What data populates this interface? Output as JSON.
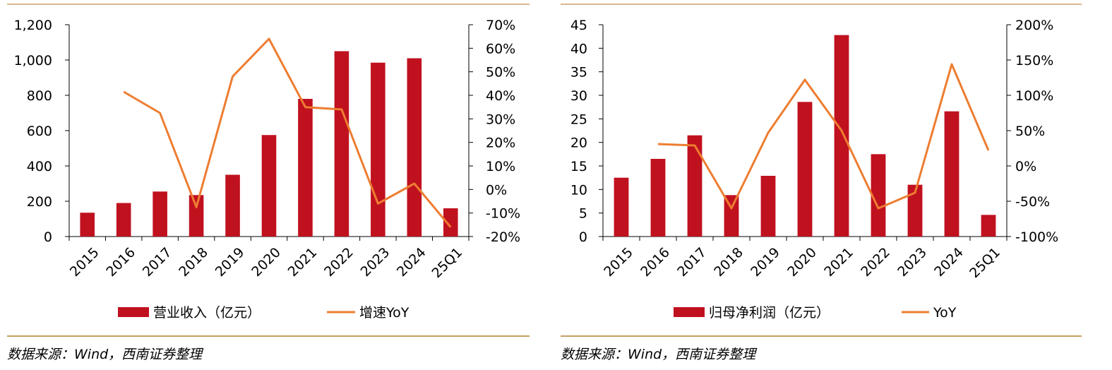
{
  "colors": {
    "bar": "#C0111F",
    "line": "#ED7D31",
    "rule": "#C9A063",
    "axis": "#000000"
  },
  "chart_data": [
    {
      "type": "bar+line",
      "categories": [
        "2015",
        "2016",
        "2017",
        "2018",
        "2019",
        "2020",
        "2021",
        "2022",
        "2023",
        "2024",
        "25Q1"
      ],
      "series": [
        {
          "name": "营业收入（亿元）",
          "type": "bar",
          "axis": "left",
          "values": [
            135,
            190,
            255,
            235,
            350,
            575,
            780,
            1050,
            985,
            1010,
            160
          ]
        },
        {
          "name": "增速YoY",
          "type": "line",
          "axis": "right",
          "values": [
            null,
            41.5,
            32.5,
            -7.5,
            48,
            64,
            35,
            34,
            -6,
            2.5,
            -16
          ]
        }
      ],
      "ylim_left": [
        0,
        1200
      ],
      "yticks_left": [
        "0",
        "200",
        "400",
        "600",
        "800",
        "1,000",
        "1,200"
      ],
      "ylim_right": [
        -20,
        70
      ],
      "yticks_right": [
        "-20%",
        "-10%",
        "0%",
        "10%",
        "20%",
        "30%",
        "40%",
        "50%",
        "60%",
        "70%"
      ],
      "legend_position": "bottom",
      "source": "数据来源：Wind，西南证券整理"
    },
    {
      "type": "bar+line",
      "categories": [
        "2015",
        "2016",
        "2017",
        "2018",
        "2019",
        "2020",
        "2021",
        "2022",
        "2023",
        "2024",
        "25Q1"
      ],
      "series": [
        {
          "name": "归母净利润（亿元）",
          "type": "bar",
          "axis": "left",
          "values": [
            12.5,
            16.5,
            21.5,
            8.8,
            12.9,
            28.6,
            42.8,
            17.5,
            11,
            26.6,
            4.6
          ]
        },
        {
          "name": "YoY",
          "type": "line",
          "axis": "right",
          "values": [
            null,
            31,
            29,
            -60,
            47,
            122,
            50,
            -60,
            -38,
            144,
            22
          ]
        }
      ],
      "ylim_left": [
        0,
        45
      ],
      "yticks_left": [
        "0",
        "5",
        "10",
        "15",
        "20",
        "25",
        "30",
        "35",
        "40",
        "45"
      ],
      "ylim_right": [
        -100,
        200
      ],
      "yticks_right": [
        "-100%",
        "-50%",
        "0%",
        "50%",
        "100%",
        "150%",
        "200%"
      ],
      "legend_position": "bottom",
      "source": "数据来源：Wind，西南证券整理"
    }
  ]
}
